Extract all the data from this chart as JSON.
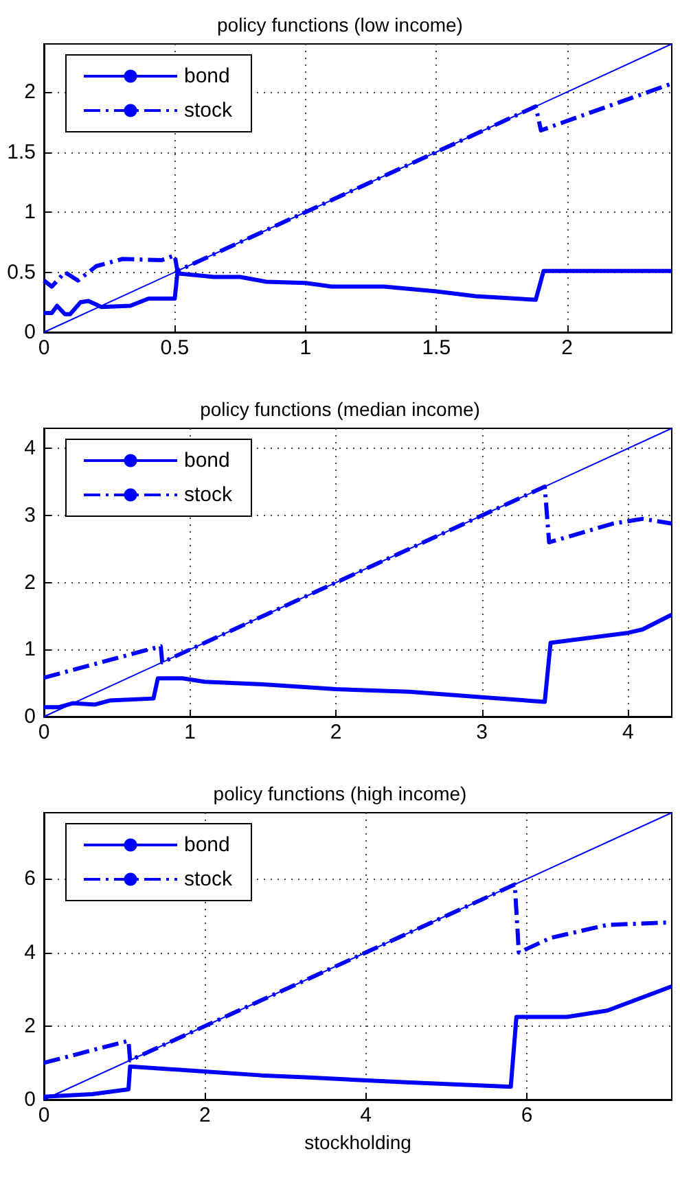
{
  "chart_data": [
    {
      "type": "line",
      "title": "policy functions (low income)",
      "xlim": [
        0,
        2.4
      ],
      "ylim": [
        0,
        2.4
      ],
      "xticks": [
        0,
        0.5,
        1,
        1.5,
        2
      ],
      "yticks": [
        0,
        0.5,
        1,
        1.5,
        2
      ],
      "grid": true,
      "legend": "top left",
      "marker": "none",
      "series": [
        {
          "name": "bond",
          "color": "#0000ff",
          "line_style": "solid",
          "x": [
            0,
            0.03,
            0.05,
            0.08,
            0.1,
            0.14,
            0.17,
            0.22,
            0.33,
            0.4,
            0.5,
            0.51,
            0.65,
            0.75,
            0.85,
            1.0,
            1.1,
            1.3,
            1.5,
            1.65,
            1.88,
            1.91,
            2.4
          ],
          "values": [
            0.16,
            0.16,
            0.22,
            0.15,
            0.15,
            0.25,
            0.26,
            0.21,
            0.22,
            0.28,
            0.28,
            0.49,
            0.46,
            0.46,
            0.42,
            0.41,
            0.38,
            0.38,
            0.34,
            0.3,
            0.27,
            0.51,
            0.51
          ]
        },
        {
          "name": "stock",
          "color": "#0000ff",
          "line_style": "dashdot",
          "x": [
            0,
            0.03,
            0.08,
            0.13,
            0.2,
            0.3,
            0.45,
            0.5,
            0.51,
            1.88,
            1.9,
            1.95,
            2.4
          ],
          "values": [
            0.43,
            0.38,
            0.5,
            0.43,
            0.55,
            0.61,
            0.6,
            0.64,
            0.51,
            1.88,
            1.68,
            1.72,
            2.07
          ]
        },
        {
          "color": "#0000ff",
          "line_style": "solid",
          "x": [
            0,
            2.4
          ],
          "values": [
            0,
            2.4
          ]
        }
      ]
    },
    {
      "type": "line",
      "title": "policy functions (median income)",
      "xlim": [
        0,
        4.3
      ],
      "ylim": [
        0,
        4.3
      ],
      "xticks": [
        0,
        1,
        2,
        3,
        4
      ],
      "yticks": [
        0,
        1,
        2,
        3,
        4
      ],
      "grid": true,
      "legend": "top left",
      "marker": "none",
      "series": [
        {
          "name": "bond",
          "color": "#0000ff",
          "line_style": "solid",
          "x": [
            0,
            0.1,
            0.2,
            0.35,
            0.45,
            0.75,
            0.78,
            0.95,
            1.1,
            1.5,
            2.0,
            2.5,
            3.0,
            3.43,
            3.47,
            4.0,
            4.1,
            4.3
          ],
          "values": [
            0.14,
            0.14,
            0.2,
            0.18,
            0.24,
            0.27,
            0.57,
            0.57,
            0.52,
            0.48,
            0.41,
            0.37,
            0.29,
            0.22,
            1.1,
            1.25,
            1.3,
            1.52
          ]
        },
        {
          "name": "stock",
          "color": "#0000ff",
          "line_style": "dashdot",
          "x": [
            0,
            0.8,
            0.81,
            3.43,
            3.46,
            3.9,
            4.1,
            4.3
          ],
          "values": [
            0.58,
            1.05,
            0.81,
            3.43,
            2.6,
            2.88,
            2.95,
            2.88
          ]
        },
        {
          "color": "#0000ff",
          "line_style": "solid",
          "x": [
            0,
            4.3
          ],
          "values": [
            0,
            4.3
          ]
        }
      ]
    },
    {
      "type": "line",
      "title": "policy functions (high income)",
      "xlabel": "stockholding",
      "xlim": [
        0,
        7.8
      ],
      "ylim": [
        0,
        7.8
      ],
      "xticks": [
        0,
        2,
        4,
        6
      ],
      "yticks": [
        0,
        2,
        4,
        6
      ],
      "grid": true,
      "legend": "top left",
      "marker": "none",
      "series": [
        {
          "name": "bond",
          "color": "#0000ff",
          "line_style": "solid",
          "x": [
            0,
            0.6,
            1.05,
            1.07,
            1.9,
            2.7,
            3.3,
            4.5,
            5.8,
            5.87,
            6.5,
            7.0,
            7.8
          ],
          "values": [
            0.08,
            0.15,
            0.28,
            0.9,
            0.78,
            0.66,
            0.6,
            0.47,
            0.35,
            2.25,
            2.25,
            2.42,
            3.08
          ]
        },
        {
          "name": "stock",
          "color": "#0000ff",
          "line_style": "dashdot",
          "x": [
            0,
            1.05,
            1.07,
            5.85,
            5.9,
            6.3,
            7.0,
            7.8
          ],
          "values": [
            1.0,
            1.6,
            1.07,
            5.85,
            4.0,
            4.4,
            4.75,
            4.82
          ]
        },
        {
          "color": "#0000ff",
          "line_style": "solid",
          "x": [
            0,
            7.8
          ],
          "values": [
            0,
            7.8
          ]
        }
      ]
    }
  ]
}
